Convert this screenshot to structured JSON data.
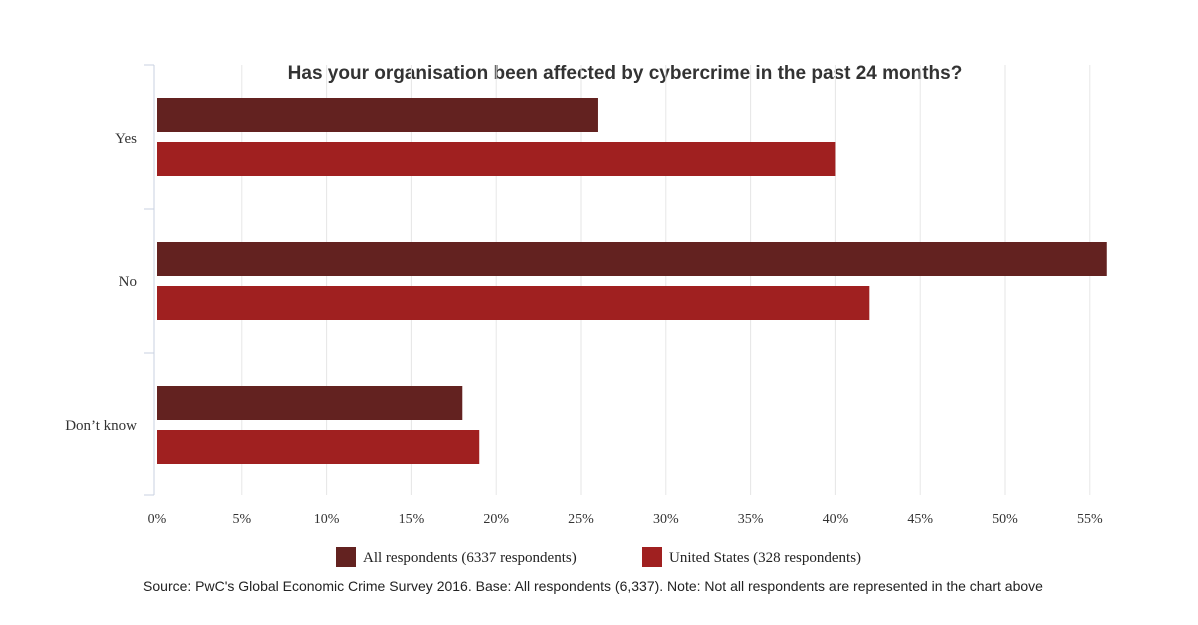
{
  "chart_data": {
    "type": "bar",
    "orientation": "horizontal",
    "title": "Has your organisation been affected by cybercrime in the past 24 months?",
    "categories": [
      "Yes",
      "No",
      "Don’t know"
    ],
    "series": [
      {
        "name": "All respondents (6337 respondents)",
        "color": "#632220",
        "values": [
          26,
          56,
          18
        ]
      },
      {
        "name": "United States (328 respondents)",
        "color": "#A02020",
        "values": [
          40,
          42,
          19
        ]
      }
    ],
    "x_ticks": [
      "0%",
      "5%",
      "10%",
      "15%",
      "20%",
      "25%",
      "30%",
      "35%",
      "40%",
      "45%",
      "50%",
      "55%"
    ],
    "xlim": [
      0,
      56
    ],
    "grid": "vertical",
    "legend_position": "bottom",
    "source": "Source: PwC's Global Economic Crime Survey 2016. Base: All respondents (6,337). Note: Not all respondents are represented in the chart above"
  }
}
